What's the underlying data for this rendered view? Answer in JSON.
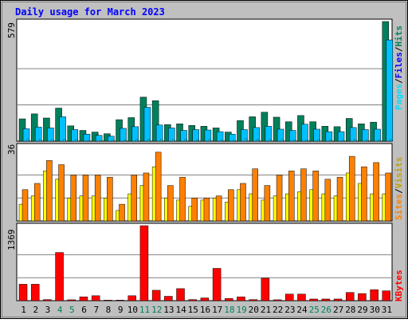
{
  "chart_data": [
    {
      "type": "bar",
      "title": "Daily usage for March 2023",
      "panel": "hits-files-pages",
      "axis_max_label": "579",
      "ylim": [
        0,
        579
      ],
      "categories": [
        "1",
        "2",
        "3",
        "4",
        "5",
        "6",
        "7",
        "8",
        "9",
        "10",
        "11",
        "12",
        "13",
        "14",
        "15",
        "16",
        "17",
        "18",
        "19",
        "20",
        "21",
        "22",
        "23",
        "24",
        "25",
        "26",
        "27",
        "28",
        "29",
        "30",
        "31"
      ],
      "series": [
        {
          "name": "Hits",
          "values": [
            108,
            132,
            112,
            160,
            74,
            52,
            44,
            36,
            104,
            114,
            213,
            196,
            80,
            84,
            76,
            72,
            64,
            44,
            100,
            118,
            140,
            116,
            94,
            124,
            94,
            72,
            70,
            110,
            84,
            92,
            579
          ]
        },
        {
          "name": "Files",
          "values": [
            60,
            68,
            64,
            118,
            56,
            34,
            28,
            24,
            62,
            70,
            164,
            78,
            64,
            52,
            56,
            54,
            46,
            34,
            56,
            66,
            72,
            58,
            52,
            82,
            58,
            46,
            46,
            66,
            56,
            58,
            490
          ]
        },
        {
          "name": "Pages",
          "values": [
            8,
            8,
            8,
            10,
            8,
            4,
            4,
            4,
            6,
            8,
            10,
            8,
            8,
            8,
            6,
            8,
            6,
            4,
            12,
            8,
            8,
            8,
            6,
            6,
            8,
            6,
            4,
            8,
            6,
            6,
            8
          ]
        }
      ]
    },
    {
      "type": "bar",
      "panel": "visits-sites",
      "axis_max_label": "36",
      "ylim": [
        0,
        36
      ],
      "categories": [
        "1",
        "2",
        "3",
        "4",
        "5",
        "6",
        "7",
        "8",
        "9",
        "10",
        "11",
        "12",
        "13",
        "14",
        "15",
        "16",
        "17",
        "18",
        "19",
        "20",
        "21",
        "22",
        "23",
        "24",
        "25",
        "26",
        "27",
        "28",
        "29",
        "30",
        "31"
      ],
      "series": [
        {
          "name": "Visits",
          "values": [
            8,
            12,
            24,
            20,
            11,
            12,
            12,
            11,
            5,
            13,
            17,
            26,
            11,
            10,
            7,
            10,
            11,
            9,
            15,
            13,
            10,
            12,
            13,
            14,
            15,
            13,
            12,
            23,
            18,
            13,
            13
          ]
        },
        {
          "name": "Sites",
          "values": [
            15,
            18,
            29,
            27,
            22,
            22,
            22,
            21,
            8,
            22,
            23,
            33,
            17,
            21,
            11,
            11,
            12,
            15,
            18,
            25,
            17,
            22,
            24,
            25,
            24,
            20,
            21,
            31,
            26,
            28,
            23
          ]
        }
      ]
    },
    {
      "type": "bar",
      "panel": "kbytes",
      "axis_max_label": "1369",
      "ylim": [
        0,
        1369
      ],
      "categories": [
        "1",
        "2",
        "3",
        "4",
        "5",
        "6",
        "7",
        "8",
        "9",
        "10",
        "11",
        "12",
        "13",
        "14",
        "15",
        "16",
        "17",
        "18",
        "19",
        "20",
        "21",
        "22",
        "23",
        "24",
        "25",
        "26",
        "27",
        "28",
        "29",
        "30",
        "31"
      ],
      "series": [
        {
          "name": "KBytes",
          "values": [
            300,
            300,
            20,
            880,
            16,
            70,
            90,
            10,
            10,
            90,
            1369,
            190,
            80,
            220,
            20,
            50,
            590,
            40,
            70,
            20,
            410,
            16,
            120,
            120,
            30,
            30,
            30,
            150,
            130,
            200,
            180
          ]
        }
      ]
    }
  ],
  "legend": {
    "pages": "Pages",
    "files": "Files",
    "hits": "Hits",
    "sites": "Sites",
    "visits": "Visits",
    "kbytes": "KBytes",
    "separator": "/"
  },
  "weekend_days": [
    4,
    5,
    11,
    12,
    18,
    19,
    25,
    26
  ],
  "colors": {
    "background": "#c0c0c0",
    "plot": "#ffffff",
    "hits": "#00805c",
    "files": "#00c0ff",
    "pages": "#00e0ff",
    "visits": "#ffff00",
    "sites": "#ff8000",
    "kbytes": "#ff0000",
    "title": "#0000ff",
    "weekday_label": "#000000",
    "weekend_label": "#00805c",
    "grid": "#808080"
  }
}
